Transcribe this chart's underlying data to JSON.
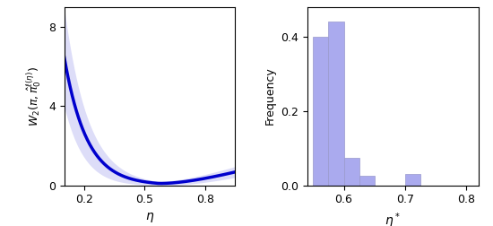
{
  "left_plot": {
    "eta_min": 0.1,
    "eta_max": 0.95,
    "ylabel": "$W_2(\\pi, \\hat{\\pi}_0^{\\ell(\\eta)})$",
    "xlabel": "$\\eta$",
    "ylim": [
      0,
      9
    ],
    "yticks": [
      0,
      4,
      8
    ],
    "xticks": [
      0.2,
      0.5,
      0.8
    ],
    "line_color": "#0000cd",
    "fill_color": "#aaaaee",
    "fill_alpha": 0.4
  },
  "right_plot": {
    "xlabel": "$\\eta^*$",
    "ylabel": "Frequency",
    "xlim": [
      0.54,
      0.82
    ],
    "ylim": [
      0.0,
      0.48
    ],
    "yticks": [
      0.0,
      0.2,
      0.4
    ],
    "xticks": [
      0.6,
      0.7,
      0.8
    ],
    "bar_color": "#aaaaee",
    "bar_edgecolor": "#9999cc",
    "bin_edges": [
      0.55,
      0.575,
      0.6,
      0.625,
      0.65,
      0.675,
      0.7,
      0.725,
      0.75,
      0.775,
      0.8
    ],
    "frequencies": [
      0.4,
      0.44,
      0.075,
      0.025,
      0.0,
      0.0,
      0.03,
      0.0,
      0.0,
      0.0
    ]
  }
}
